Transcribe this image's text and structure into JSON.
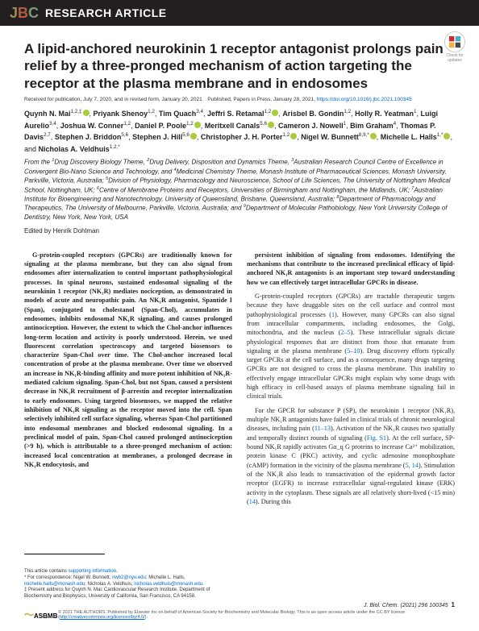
{
  "journal_logo": {
    "j": "J",
    "b": "B",
    "c": "C"
  },
  "header_label": "RESEARCH ARTICLE",
  "crossmark_label": "Check for updates",
  "title": "A lipid-anchored neurokinin 1 receptor antagonist prolongs pain relief by a three-pronged mechanism of action targeting the receptor at the plasma membrane and in endosomes",
  "received": "Received for publication, July 7, 2020, and in revised form, January 20, 2021 Published, Papers in Press, January 28, 2021,",
  "doi": "https://doi.org/10.1016/j.jbc.2021.100345",
  "authors_html": "<b>Quynh N. Mai</b><sup>1,2,‡</sup><span class='orcid'></span>, <b>Priyank Shenoy</b><sup>1,2</sup>, <b>Tim Quach</b><sup>3,4</sup>, <b>Jeffri S. Retamal</b><sup>1,2</sup><span class='orcid'></span>, <b>Arisbel B. Gondin</b><sup>1,2</sup>, <b>Holly R. Yeatman</b><sup>1</sup>, <b>Luigi Aurelio</b><sup>3,4</sup>, <b>Joshua W. Conner</b><sup>1,2</sup>, <b>Daniel P. Poole</b><sup>1,2</sup><span class='orcid'></span>, <b>Meritxell Canals</b><sup>5,6</sup><span class='orcid'></span>, <b>Cameron J. Nowell</b><sup>1</sup>, <b>Bim Graham</b><sup>4</sup>, <b>Thomas P. Davis</b><sup>2,7</sup>, <b>Stephen J. Briddon</b><sup>5,6</sup>, <b>Stephen J. Hill</b><sup>5,6</sup><span class='orcid'></span>, <b>Christopher J. H. Porter</b><sup>1,2</sup><span class='orcid'></span>, <b>Nigel W. Bunnett</b><sup>8,9,*</sup><span class='orcid'></span>, <b>Michelle L. Halls</b><sup>1,*</sup><span class='orcid'></span>, and <b>Nicholas A. Veldhuis</b><sup>1,2,*</sup>",
  "affiliations": "From the <sup>1</sup>Drug Discovery Biology Theme, <sup>2</sup>Drug Delivery, Disposition and Dynamics Theme, <sup>3</sup>Australian Research Council Centre of Excellence in Convergent Bio-Nano Science and Technology, and <sup>4</sup>Medicinal Chemistry Theme, Monash Institute of Pharmaceutical Sciences, Monash University, Parkville, Victoria, Australia; <sup>5</sup>Division of Physiology, Pharmacology and Neuroscience, School of Life Sciences, The University of Nottingham Medical School, Nottingham, UK; <sup>6</sup>Centre of Membrane Proteins and Receptors, Universities of Birmingham and Nottingham, the Midlands, UK; <sup>7</sup>Australian Institute for Bioengineering and Nanotechnology, University of Queensland, Brisbane, Queensland, Australia; <sup>8</sup>Department of Pharmacology and Therapeutics, The University of Melbourne, Parkville, Victoria, Australia; and <sup>9</sup>Department of Molecular Pathobiology, New York University College of Dentistry, New York, New York, USA",
  "edited_by": "Edited by Henrik Dohlman",
  "abstract_1": "G-protein-coupled receptors (GPCRs) are traditionally known for signaling at the plasma membrane, but they can also signal from endosomes after internalization to control important pathophysiological processes. In spinal neurons, sustained endosomal signaling of the neurokinin 1 receptor (NK₁R) mediates nociception, as demonstrated in models of acute and neuropathic pain. An NK₁R antagonist, Spantide I (Span), conjugated to cholestanol (Span-Chol), accumulates in endosomes, inhibits endosomal NK₁R signaling, and causes prolonged antinociception. However, the extent to which the Chol-anchor influences long-term location and activity is poorly understood. Herein, we used fluorescent correlation spectroscopy and targeted biosensors to characterize Span-Chol over time. The Chol-anchor increased local concentration of probe at the plasma membrane. Over time we observed an increase in NK₁R-binding affinity and more potent inhibition of NK₁R-mediated calcium signaling. Span-Chol, but not Span, caused a persistent decrease in NK₁R recruitment of β-arrestin and receptor internalization to early endosomes. Using targeted biosensors, we mapped the relative inhibition of NK₁R signaling as the receptor moved into the cell. Span selectively inhibited cell surface signaling, whereas Span-Chol partitioned into endosomal membranes and blocked endosomal signaling. In a preclinical model of pain, Span-Chol caused prolonged antinociception (>9 h), which is attributable to a three-pronged mechanism of action: increased local concentration at membranes, a prolonged decrease in NK₁R endocytosis, and",
  "col2_p1": "persistent inhibition of signaling from endosomes. Identifying the mechanisms that contribute to the increased preclinical efficacy of lipid-anchored NK₁R antagonists is an important step toward understanding how we can effectively target intracellular GPCRs in disease.",
  "col2_p2": "G-protein-coupled receptors (GPCRs) are tractable therapeutic targets because they have druggable sites on the cell surface and control most pathophysiological processes (1). However, many GPCRs can also signal from intracellular compartments, including endosomes, the Golgi, mitochondria, and the nucleus (2–5). These intracellular signals dictate physiological responses that are distinct from those that emanate from signaling at the plasma membrane (5–10). Drug discovery efforts typically target GPCRs at the cell surface, and as a consequence, many drugs targeting GPCRs are not designed to cross the plasma membrane. This inability to effectively engage intracellular GPCRs might explain why some drugs with high efficacy in cell-based assays of plasma membrane signaling fail in clinical trials.",
  "col2_p3": "For the GPCR for substance P (SP), the neurokinin 1 receptor (NK₁R), multiple NK₁R antagonists have failed in clinical trials of chronic neurological diseases, including pain (11–13). Activation of the NK₁R causes two spatially and temporally distinct rounds of signaling (Fig. S1). At the cell surface, SP-bound NK₁R rapidly activates Gα_q G proteins to increase Ca²⁺ mobilization, protein kinase C (PKC) activity, and cyclic adenosine monophosphate (cAMP) formation in the vicinity of the plasma membrane (5, 14). Stimulation of the NK₁R also leads to transactivation of the epidermal growth factor receptor (EGFR) to increase extracellular signal-regulated kinase (ERK) activity in the cytoplasm. These signals are all relatively short-lived (<15 min) (14). During this",
  "footnote_supporting": "This article contains supporting information.",
  "footnote_corr": "* For correspondence: Nigel W. Bunnett, nwb2@nyu.edu; Michelle L. Halls, michelle.halls@monash.edu; Nicholas A. Veldhuis, nicholas.veldhuis@monash.edu.",
  "footnote_present": "‡ Present address for Quynh N. Mai: Cardiovascular Research Institute, Department of Biochemistry and Biophysics, University of California, San Francisco, CA 94158.",
  "asbmb": "ASBMB",
  "citation": "J. Biol. Chem. (2021) 296 100345",
  "page_num": "1",
  "copyright": "© 2021 THE AUTHORS. Published by Elsevier Inc on behalf of American Society for Biochemistry and Molecular Biology. This is an open access article under the CC BY license (http://creativecommons.org/licenses/by/4.0/).",
  "cc_url": "http://creativecommons.org/licenses/by/4.0/"
}
